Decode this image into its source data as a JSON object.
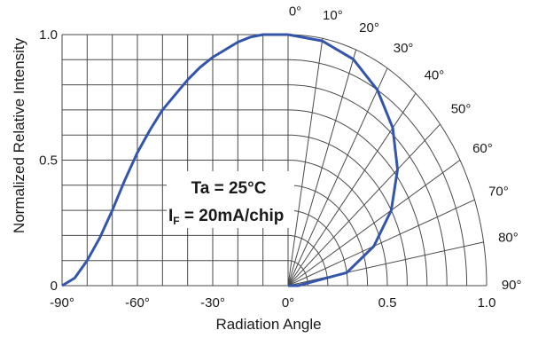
{
  "chart_data": {
    "type": "line",
    "xlabel": "Radiation Angle",
    "ylabel": "Normalized Relative Intensity",
    "x_tick_labels": [
      "-90°",
      "-60°",
      "-30°",
      "0°"
    ],
    "y_tick_labels": [
      "0",
      "0.5",
      "1.0"
    ],
    "xlim": [
      -90,
      0
    ],
    "ylim": [
      0,
      1.0
    ],
    "polar_angle_labels": [
      "0°",
      "10°",
      "20°",
      "30°",
      "40°",
      "50°",
      "60°",
      "70°",
      "80°",
      "90°"
    ],
    "polar_radius_labels": [
      "0.5",
      "1.0"
    ],
    "grid": true,
    "annotation": {
      "ta": "Ta = 25°C",
      "if_main": "I",
      "if_sub": "F",
      "if_rest": " = 20mA/chip"
    },
    "colors": {
      "curve": "#3355aa",
      "grid": "#4a4a4a"
    },
    "series": [
      {
        "x": [
          -90,
          -85,
          -80,
          -75,
          -70,
          -65,
          -60,
          -55,
          -50,
          -45,
          -40,
          -35,
          -30,
          -25,
          -20,
          -15,
          -10,
          -5,
          0
        ],
        "y": [
          0.0,
          0.03,
          0.1,
          0.19,
          0.3,
          0.42,
          0.53,
          0.62,
          0.7,
          0.76,
          0.82,
          0.87,
          0.91,
          0.94,
          0.97,
          0.99,
          1.0,
          1.0,
          1.0
        ]
      }
    ],
    "polar_series": [
      {
        "angle": [
          0,
          10,
          20,
          30,
          40,
          50,
          60,
          70,
          80,
          90
        ],
        "r": [
          1.0,
          0.99,
          0.96,
          0.9,
          0.82,
          0.72,
          0.6,
          0.46,
          0.3,
          0.05
        ]
      }
    ]
  }
}
